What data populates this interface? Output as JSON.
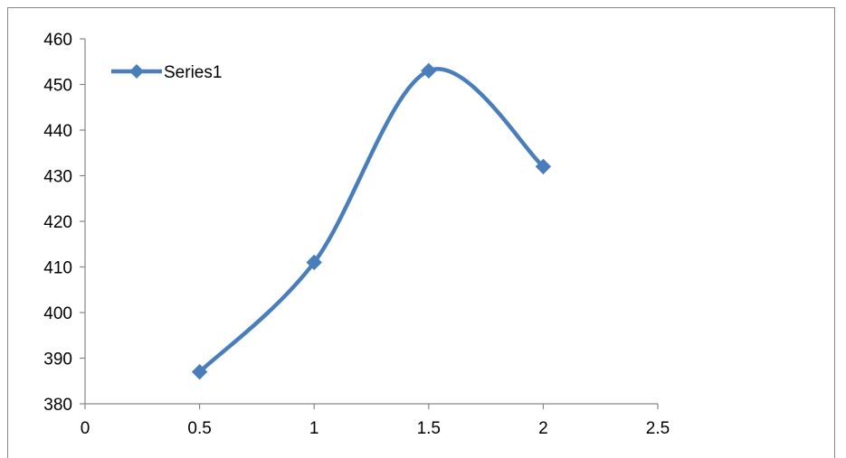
{
  "chart_data": {
    "type": "scatter",
    "series": [
      {
        "name": "Series1",
        "x": [
          0.5,
          1,
          1.5,
          2
        ],
        "y": [
          387,
          411,
          453,
          432
        ],
        "color": "#4a7ebb",
        "marker": "diamond",
        "smooth": true
      }
    ],
    "xlim": [
      0,
      2.5
    ],
    "ylim": [
      380,
      460
    ],
    "x_ticks": [
      0,
      0.5,
      1,
      1.5,
      2,
      2.5
    ],
    "y_ticks": [
      380,
      390,
      400,
      410,
      420,
      430,
      440,
      450,
      460
    ],
    "x_tick_labels": [
      "0",
      "0.5",
      "1",
      "1.5",
      "2",
      "2.5"
    ],
    "y_tick_labels": [
      "380",
      "390",
      "400",
      "410",
      "420",
      "430",
      "440",
      "450",
      "460"
    ],
    "title": "",
    "xlabel": "",
    "ylabel": "",
    "grid": false,
    "legend": {
      "position": "top-left",
      "entries": [
        "Series1"
      ]
    },
    "colors": {
      "axis": "#878787",
      "series": "#4a7ebb"
    }
  }
}
